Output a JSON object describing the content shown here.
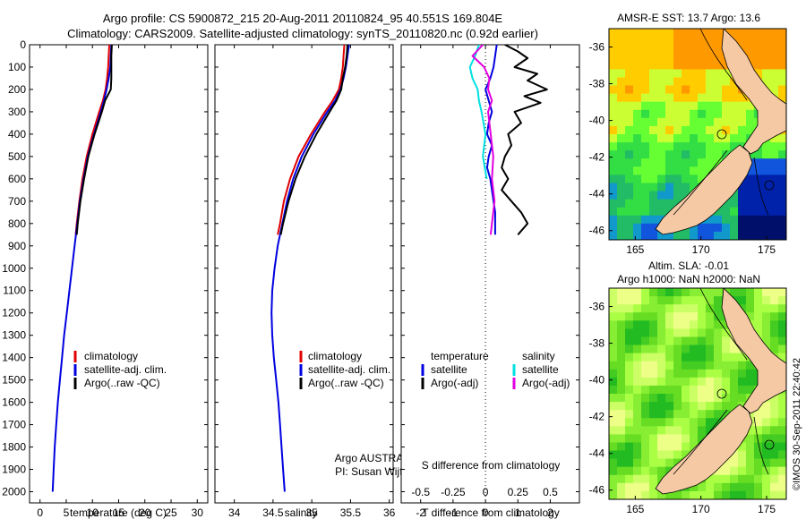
{
  "header": {
    "line1": "Argo profile: CS 5900872_215 20-Aug-2011 20110824_95 40.551S 169.804E",
    "line2": "Climatology: CARS2009. Satellite-adjusted climatology: synTS_20110820.nc (0.92d earlier)"
  },
  "credit": "©IMOS 30-Sep-2011 22:40:42",
  "colors": {
    "climatology": "#e00000",
    "satellite": "#0000e0",
    "argo": "#000000",
    "salinity_satellite": "#00e0e0",
    "salinity_argo": "#e000e0",
    "land": "#f5c9a4"
  },
  "chart_data": [
    {
      "type": "line",
      "panel": "temperature",
      "xlabel": "temperature (deg C)",
      "ylabel": "",
      "xlim": [
        -2,
        32
      ],
      "ylim": [
        2050,
        0
      ],
      "xticks": [
        "0",
        "5",
        "10",
        "15",
        "20",
        "25",
        "30"
      ],
      "yticks": [
        "0",
        "100",
        "200",
        "300",
        "400",
        "500",
        "600",
        "700",
        "800",
        "900",
        "1000",
        "1100",
        "1200",
        "1300",
        "1400",
        "1500",
        "1600",
        "1700",
        "1800",
        "1900",
        "2000"
      ],
      "legend": [
        "climatology",
        "satellite-adj. clim.",
        "Argo(..raw -QC)"
      ],
      "series": [
        {
          "name": "climatology",
          "color": "#e00000",
          "depth": [
            0,
            50,
            100,
            150,
            200,
            250,
            300,
            400,
            500,
            600,
            700,
            800,
            850
          ],
          "values": [
            13.2,
            13.1,
            13.0,
            12.8,
            12.5,
            12.0,
            11.3,
            10.0,
            8.9,
            8.1,
            7.5,
            7.0,
            6.8
          ]
        },
        {
          "name": "satellite-adj. clim.",
          "color": "#0000e0",
          "depth": [
            0,
            50,
            100,
            150,
            200,
            250,
            300,
            400,
            500,
            600,
            700,
            800,
            900,
            1000,
            1100,
            1200,
            1300,
            1400,
            1500,
            1600,
            1700,
            1800,
            1900,
            2000
          ],
          "values": [
            13.6,
            13.5,
            13.4,
            13.1,
            12.7,
            12.2,
            11.6,
            10.3,
            9.1,
            8.3,
            7.6,
            7.1,
            6.6,
            6.1,
            5.6,
            5.1,
            4.6,
            4.2,
            3.8,
            3.4,
            3.1,
            2.8,
            2.6,
            2.4
          ]
        },
        {
          "name": "Argo(..raw -QC)",
          "color": "#000000",
          "depth": [
            0,
            50,
            100,
            150,
            200,
            250,
            300,
            400,
            500,
            600,
            700,
            800,
            850
          ],
          "values": [
            13.7,
            13.6,
            13.6,
            13.6,
            13.5,
            12.4,
            11.8,
            10.4,
            9.2,
            8.4,
            7.7,
            7.2,
            7.0
          ]
        }
      ]
    },
    {
      "type": "line",
      "panel": "salinity",
      "xlabel": "salinity",
      "ylabel": "",
      "xlim": [
        33.75,
        36.05
      ],
      "ylim": [
        2050,
        0
      ],
      "xticks": [
        "34",
        "34.5",
        "35",
        "35.5",
        "36"
      ],
      "legend": [
        "climatology",
        "satellite-adj. clim.",
        "Argo(..raw -QC)"
      ],
      "annotation": [
        "Argo AUSTRALIA",
        "PI: Susan Wijffels"
      ],
      "series": [
        {
          "name": "climatology",
          "color": "#e00000",
          "depth": [
            0,
            50,
            100,
            150,
            200,
            250,
            300,
            400,
            500,
            600,
            700,
            800,
            850
          ],
          "values": [
            35.42,
            35.41,
            35.4,
            35.38,
            35.35,
            35.27,
            35.17,
            34.99,
            34.83,
            34.72,
            34.64,
            34.59,
            34.56
          ]
        },
        {
          "name": "satellite-adj. clim.",
          "color": "#0000e0",
          "depth": [
            0,
            50,
            100,
            150,
            200,
            250,
            300,
            400,
            500,
            600,
            700,
            800,
            900,
            1000,
            1100,
            1200,
            1300,
            1400,
            1500,
            1600,
            1700,
            1800,
            1900,
            2000
          ],
          "values": [
            35.48,
            35.46,
            35.44,
            35.41,
            35.37,
            35.3,
            35.2,
            35.02,
            34.87,
            34.76,
            34.68,
            34.62,
            34.56,
            34.52,
            34.49,
            34.48,
            34.49,
            34.51,
            34.54,
            34.57,
            34.59,
            34.61,
            34.63,
            34.65
          ]
        },
        {
          "name": "Argo(..raw -QC)",
          "color": "#000000",
          "depth": [
            0,
            50,
            100,
            150,
            200,
            250,
            300,
            400,
            500,
            600,
            700,
            800,
            850
          ],
          "values": [
            35.46,
            35.45,
            35.43,
            35.4,
            35.38,
            35.32,
            35.23,
            35.06,
            34.91,
            34.79,
            34.7,
            34.63,
            34.6
          ]
        }
      ]
    },
    {
      "type": "line",
      "panel": "difference",
      "xlabel": "T difference from climatology",
      "xlabel_top": "S difference from climatology",
      "xlim": [
        -2.6,
        2.9
      ],
      "ylim": [
        2050,
        0
      ],
      "xticks": [
        "-2",
        "-1",
        "0",
        "1",
        "2"
      ],
      "xticks_salinity": [
        "-0.5",
        "-0.25",
        "0",
        "0.25",
        "0.5"
      ],
      "legend_temperature": {
        "title": "temperature",
        "items": [
          "satellite",
          "Argo(-adj)"
        ]
      },
      "legend_salinity": {
        "title": "salinity",
        "items": [
          "satellite",
          "Argo(-adj)"
        ]
      },
      "series": [
        {
          "name": "temperature satellite",
          "color": "#0000e0",
          "depth": [
            0,
            50,
            100,
            150,
            200,
            250,
            300,
            350,
            400,
            450,
            500,
            550,
            600,
            650,
            700,
            750,
            800,
            850
          ],
          "values": [
            0.35,
            0.3,
            0.25,
            0.15,
            0.0,
            0.1,
            0.2,
            0.1,
            0.05,
            0.2,
            0.1,
            0.05,
            0.15,
            0.2,
            0.25,
            0.3,
            0.3,
            0.3
          ]
        },
        {
          "name": "temperature Argo(-adj)",
          "color": "#000000",
          "depth": [
            0,
            30,
            60,
            100,
            130,
            160,
            200,
            230,
            260,
            300,
            350,
            400,
            450,
            500,
            550,
            600,
            650,
            700,
            750,
            800,
            850
          ],
          "values": [
            0.6,
            1.0,
            1.3,
            0.9,
            1.6,
            1.3,
            1.9,
            1.2,
            1.7,
            0.9,
            1.1,
            0.7,
            0.8,
            0.6,
            0.5,
            0.7,
            0.5,
            0.8,
            1.1,
            1.3,
            1.0
          ]
        },
        {
          "name": "salinity satellite",
          "color": "#00e0e0",
          "depth": [
            0,
            50,
            100,
            150,
            200,
            250,
            300,
            400,
            500,
            600
          ],
          "values": [
            -0.05,
            -0.08,
            -0.12,
            -0.1,
            -0.06,
            -0.05,
            -0.03,
            0.0,
            -0.02,
            0.01
          ]
        },
        {
          "name": "salinity Argo(-adj)",
          "color": "#e000e0",
          "depth": [
            0,
            50,
            100,
            150,
            200,
            250,
            300,
            400,
            500,
            600,
            700,
            800,
            850
          ],
          "values": [
            -0.02,
            -0.1,
            -0.01,
            0.03,
            0.02,
            0.05,
            0.02,
            0.04,
            0.06,
            0.05,
            0.07,
            0.05,
            0.04
          ]
        }
      ]
    },
    {
      "type": "heatmap",
      "panel": "sst_map",
      "title": "AMSR-E SST: 13.7 Argo: 13.6",
      "xticks": [
        "165",
        "170",
        "175"
      ],
      "yticks": [
        "-36",
        "-38",
        "-40",
        "-42",
        "-44",
        "-46"
      ],
      "xlim": [
        163,
        176.5
      ],
      "ylim": [
        -46.5,
        -35
      ]
    },
    {
      "type": "heatmap",
      "panel": "sla_map",
      "title_lines": [
        "Altim. SLA: -0.01",
        "Argo h1000: NaN h2000: NaN"
      ],
      "xticks": [
        "165",
        "170",
        "175"
      ],
      "yticks": [
        "-36",
        "-38",
        "-40",
        "-42",
        "-44",
        "-46"
      ],
      "xlim": [
        163,
        176.5
      ],
      "ylim": [
        -46.5,
        -35
      ]
    }
  ]
}
